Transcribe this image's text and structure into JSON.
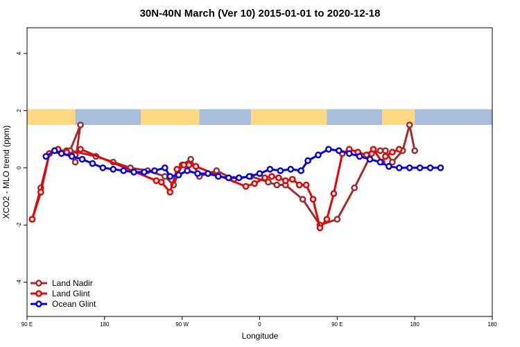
{
  "chart_data": {
    "type": "line",
    "title": "30N-40N March (Ver 10)   2015-01-01 to 2020-12-18",
    "xlabel": "Longitude",
    "ylabel": "XCO2 - MLO trend (ppm)",
    "xlim": [
      -90,
      180
    ],
    "ylim": [
      -5.2,
      4.9
    ],
    "x_ticks": [
      {
        "value": -90,
        "label": "90 E"
      },
      {
        "value": -45,
        "label": "180"
      },
      {
        "value": 0,
        "label": "90 W"
      },
      {
        "value": 45,
        "label": "0"
      },
      {
        "value": 90,
        "label": "90 E"
      },
      {
        "value": 135,
        "label": "180"
      }
    ],
    "y_ticks": [
      {
        "value": -4,
        "label": "-4"
      },
      {
        "value": -2,
        "label": "-2"
      },
      {
        "value": 0,
        "label": "0"
      },
      {
        "value": 2,
        "label": "2"
      },
      {
        "value": 4,
        "label": "4"
      }
    ],
    "grid": false,
    "legend_position": "bottom-left",
    "map_band": {
      "y_bottom": 1.5,
      "y_top": 2.05,
      "ocean_color": "#a8bedd",
      "land_color": "#ffd884"
    },
    "series": [
      {
        "name": "Land Nadir",
        "color": "#a52a2a",
        "x": [
          -87,
          -82,
          -77,
          -72,
          -67,
          -62,
          -59,
          -65,
          -50,
          -40,
          -30,
          -20,
          -10,
          -5,
          0,
          5,
          10,
          20,
          30,
          40,
          50,
          55,
          60,
          70,
          80,
          90,
          100,
          110,
          115,
          118,
          122,
          128,
          132,
          135
        ],
        "y": [
          -1.8,
          -0.7,
          0.5,
          0.6,
          0.6,
          0.2,
          1.5,
          0.6,
          0.4,
          0.2,
          0.0,
          -0.1,
          -0.3,
          -0.6,
          0.1,
          0.3,
          -0.3,
          -0.1,
          -0.4,
          -0.3,
          -0.5,
          -0.6,
          -0.6,
          -1.1,
          -2.0,
          -1.8,
          -0.7,
          0.5,
          0.6,
          0.6,
          0.2,
          0.6,
          1.5,
          0.6
        ]
      },
      {
        "name": "Land Glint",
        "color": "#ee0000",
        "x": [
          -87,
          -82,
          -77,
          -72,
          -67,
          -62,
          -59,
          -15,
          -12,
          -7,
          -3,
          1,
          4,
          8,
          37,
          42,
          48,
          52,
          56,
          60,
          64,
          68,
          72,
          76,
          80,
          84,
          88,
          93,
          97,
          102,
          107,
          111,
          116,
          118,
          122,
          126
        ],
        "y": [
          -1.8,
          -0.85,
          0.5,
          0.65,
          0.55,
          0.45,
          0.65,
          -0.45,
          -0.5,
          -0.85,
          -0.05,
          0.1,
          0.1,
          0.05,
          -0.65,
          -0.55,
          -0.35,
          -0.3,
          -0.35,
          -0.45,
          -0.4,
          -0.6,
          -0.6,
          -1.1,
          -2.1,
          -1.8,
          -0.9,
          0.5,
          0.65,
          0.55,
          0.45,
          0.65,
          0.2,
          0.4,
          0.55,
          0.65
        ],
        "x_note": "two separate segments of the original trace are joined"
      },
      {
        "name": "Ocean Glint",
        "color": "#0000ee",
        "x": [
          -79,
          -74,
          -70,
          -64,
          -58,
          -52,
          -46,
          -40,
          -34,
          -28,
          -22,
          -16,
          -10,
          -7,
          -2,
          3,
          9,
          15,
          21,
          27,
          33,
          39,
          45,
          51,
          57,
          63,
          69,
          73,
          79,
          85,
          91,
          97,
          103,
          109,
          115,
          120,
          126,
          132,
          138,
          144,
          150
        ],
        "y": [
          0.4,
          0.6,
          0.5,
          0.4,
          0.3,
          0.15,
          0.0,
          -0.05,
          -0.1,
          -0.15,
          -0.15,
          -0.1,
          0.0,
          -0.3,
          -0.25,
          -0.1,
          -0.2,
          -0.2,
          -0.3,
          -0.35,
          -0.35,
          -0.3,
          -0.2,
          -0.05,
          -0.1,
          -0.05,
          -0.1,
          0.25,
          0.45,
          0.65,
          0.6,
          0.5,
          0.4,
          0.3,
          0.2,
          0.05,
          0.0,
          0.0,
          0.0,
          0.0,
          0.0
        ]
      }
    ]
  }
}
